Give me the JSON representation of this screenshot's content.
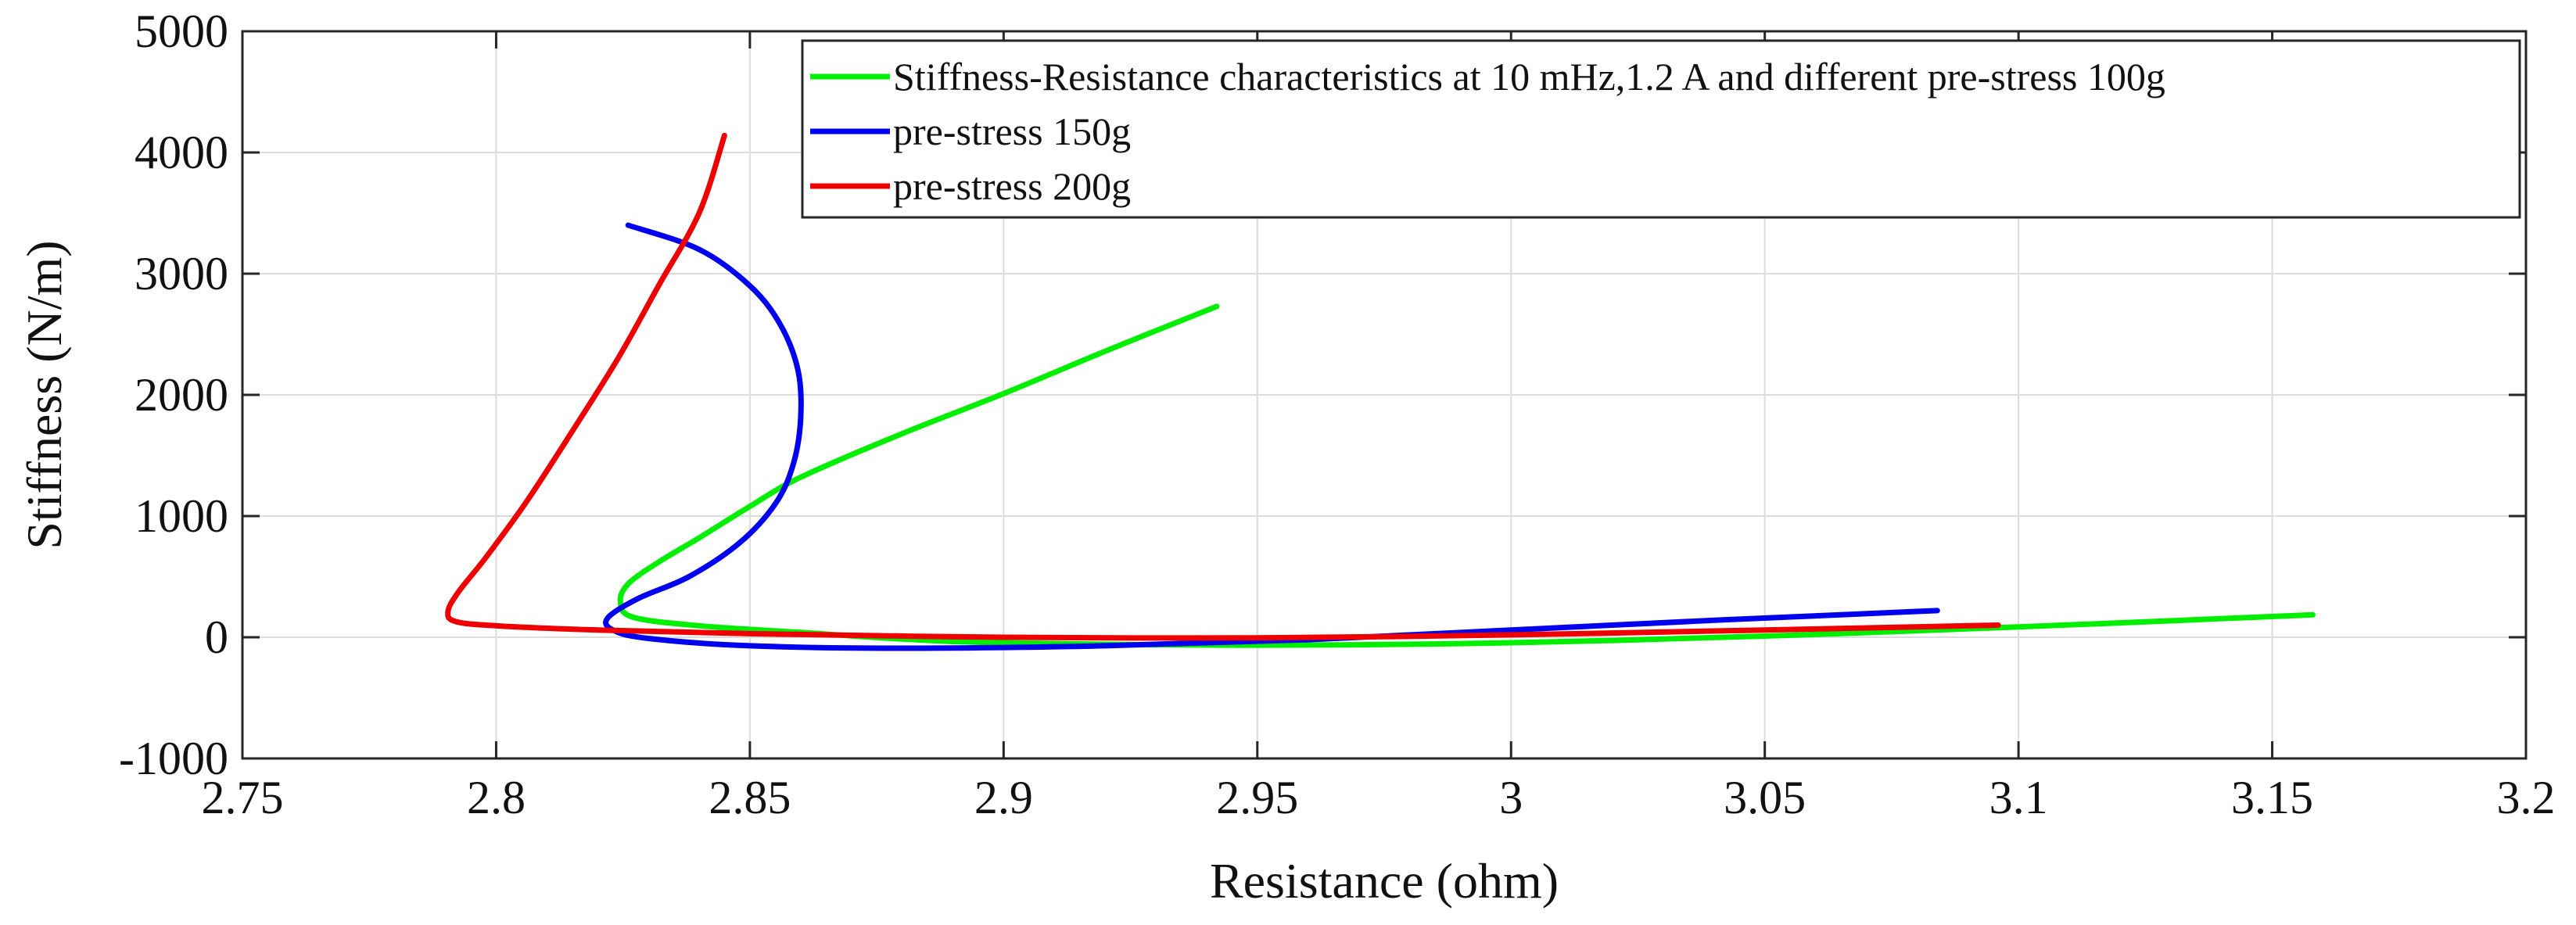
{
  "chart_data": {
    "type": "line",
    "title": "",
    "xlabel": "Resistance (ohm)",
    "ylabel": "Stiffness (N/m)",
    "xlim": [
      2.75,
      3.2
    ],
    "ylim": [
      -1000,
      5000
    ],
    "xticks": [
      2.75,
      2.8,
      2.85,
      2.9,
      2.95,
      3,
      3.05,
      3.1,
      3.15,
      3.2
    ],
    "xtick_labels": [
      "2.75",
      "2.8",
      "2.85",
      "2.9",
      "2.95",
      "3",
      "3.05",
      "3.1",
      "3.15",
      "3.2"
    ],
    "yticks": [
      -1000,
      0,
      1000,
      2000,
      3000,
      4000,
      5000
    ],
    "ytick_labels": [
      "-1000",
      "0",
      "1000",
      "2000",
      "3000",
      "4000",
      "5000"
    ],
    "grid": true,
    "legend_position": "top-right",
    "series": [
      {
        "name": "Stiffness-Resistance characteristics at 10 mHz,1.2 A and different pre-stress 100g",
        "color": "#00ee00",
        "x": [
          2.942,
          2.92,
          2.9,
          2.88,
          2.86,
          2.85,
          2.84,
          2.832,
          2.826,
          2.8245,
          2.827,
          2.84,
          2.86,
          2.88,
          2.9,
          2.95,
          3.0,
          3.05,
          3.1,
          3.158
        ],
        "y": [
          2730,
          2360,
          2010,
          1680,
          1320,
          1080,
          820,
          620,
          440,
          290,
          165,
          95,
          40,
          -15,
          -45,
          -65,
          -45,
          10,
          85,
          185
        ]
      },
      {
        "name": "pre-stress 150g",
        "color": "#0000ee",
        "x": [
          2.826,
          2.84,
          2.85,
          2.856,
          2.8595,
          2.86,
          2.8585,
          2.855,
          2.848,
          2.838,
          2.828,
          2.822,
          2.823,
          2.83,
          2.85,
          2.88,
          2.92,
          2.96,
          3.0,
          3.04,
          3.084
        ],
        "y": [
          3400,
          3200,
          2900,
          2580,
          2200,
          1800,
          1420,
          1100,
          780,
          500,
          320,
          160,
          60,
          -10,
          -70,
          -90,
          -70,
          -20,
          60,
          140,
          220
        ]
      },
      {
        "name": "pre-stress 200g",
        "color": "#ee0000",
        "x": [
          2.845,
          2.84,
          2.832,
          2.824,
          2.815,
          2.806,
          2.798,
          2.7925,
          2.7905,
          2.792,
          2.8,
          2.82,
          2.85,
          2.9,
          2.95,
          3.0,
          3.05,
          3.096
        ],
        "y": [
          4140,
          3500,
          2900,
          2300,
          1700,
          1120,
          660,
          370,
          210,
          130,
          95,
          60,
          30,
          0,
          -5,
          20,
          60,
          100
        ]
      }
    ]
  }
}
